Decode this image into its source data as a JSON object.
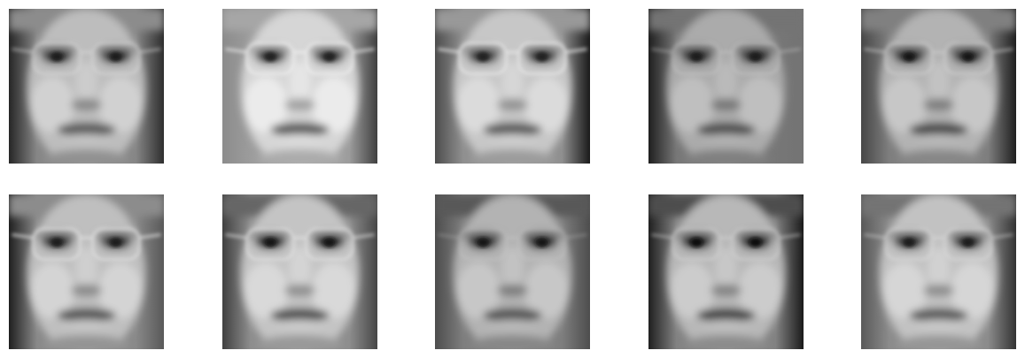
{
  "figure": {
    "rows": 2,
    "cols": 5,
    "tiles": [
      {
        "tone": 0.62,
        "bg_left": 0.15,
        "bg_right": 0.18,
        "glasses": 0.55,
        "hair_top": 0.55,
        "mouth": 0.35,
        "eyes": 0.2
      },
      {
        "tone": 0.72,
        "bg_left": 0.55,
        "bg_right": 0.25,
        "glasses": 0.75,
        "hair_top": 0.65,
        "mouth": 0.35,
        "eyes": 0.22
      },
      {
        "tone": 0.66,
        "bg_left": 0.3,
        "bg_right": 0.1,
        "glasses": 0.85,
        "hair_top": 0.6,
        "mouth": 0.35,
        "eyes": 0.22
      },
      {
        "tone": 0.55,
        "bg_left": 0.12,
        "bg_right": 0.45,
        "glasses": 0.45,
        "hair_top": 0.45,
        "mouth": 0.3,
        "eyes": 0.18
      },
      {
        "tone": 0.58,
        "bg_left": 0.28,
        "bg_right": 0.12,
        "glasses": 0.6,
        "hair_top": 0.5,
        "mouth": 0.28,
        "eyes": 0.16
      },
      {
        "tone": 0.63,
        "bg_left": 0.12,
        "bg_right": 0.35,
        "glasses": 0.85,
        "hair_top": 0.55,
        "mouth": 0.32,
        "eyes": 0.2
      },
      {
        "tone": 0.65,
        "bg_left": 0.25,
        "bg_right": 0.28,
        "glasses": 0.7,
        "hair_top": 0.4,
        "mouth": 0.3,
        "eyes": 0.12
      },
      {
        "tone": 0.58,
        "bg_left": 0.3,
        "bg_right": 0.3,
        "glasses": 0.3,
        "hair_top": 0.35,
        "mouth": 0.32,
        "eyes": 0.16
      },
      {
        "tone": 0.6,
        "bg_left": 0.12,
        "bg_right": 0.1,
        "glasses": 0.55,
        "hair_top": 0.3,
        "mouth": 0.25,
        "eyes": 0.1
      },
      {
        "tone": 0.64,
        "bg_left": 0.35,
        "bg_right": 0.2,
        "glasses": 0.5,
        "hair_top": 0.45,
        "mouth": 0.35,
        "eyes": 0.2
      }
    ]
  }
}
